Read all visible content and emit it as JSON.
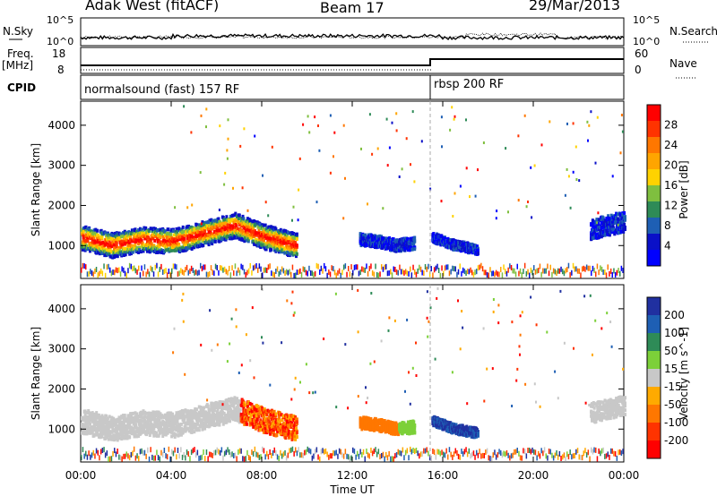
{
  "header": {
    "radar": "Adak West (fitACF)",
    "beam": "Beam 17",
    "date": "29/Mar/2013"
  },
  "top_panel": {
    "left_label_1": "N.Sky",
    "left_label_2": "Freq.",
    "left_label_3": "[MHz]",
    "left_label_4": "CPID",
    "right_label_1": "N.Search",
    "right_label_2": "Nave",
    "noise_ticks": [
      "10^5",
      "10^0"
    ],
    "noise_ticks_right": [
      "10^5",
      "10^0"
    ],
    "freq_ticks": [
      "18",
      "8"
    ],
    "nave_ticks": [
      "60",
      "0"
    ],
    "cpid_segments": [
      {
        "label": "normalsound (fast) 157 RF",
        "start_hour": 0
      },
      {
        "label": "rbsp 200 RF",
        "start_hour": 15.5
      }
    ]
  },
  "power_panel": {
    "ylabel": "Slant Range [km]",
    "colorbar_label": "Power [dB]",
    "colorbar_ticks": [
      "28",
      "24",
      "20",
      "16",
      "12",
      "8",
      "4"
    ],
    "colorbar_colors": [
      "#ff0000",
      "#ff3300",
      "#ff7700",
      "#ffa500",
      "#ffd200",
      "#7fbf3f",
      "#2e8b57",
      "#1e5fb4",
      "#0a10c8",
      "#0000ff"
    ]
  },
  "velocity_panel": {
    "ylabel": "Slant Range [km]",
    "colorbar_label": "Velocity [m s^-1]",
    "colorbar_ticks": [
      "200",
      "100",
      "50",
      "15",
      "-15",
      "-50",
      "-100",
      "-200"
    ],
    "colorbar_colors": [
      "#2030a0",
      "#1e5fb4",
      "#2e8b57",
      "#7cd039",
      "#c8c8c8",
      "#ffaa00",
      "#ff7700",
      "#ff3300",
      "#ff0000"
    ]
  },
  "xaxis": {
    "label": "Time UT",
    "ticks": [
      "00:00",
      "04:00",
      "08:00",
      "12:00",
      "16:00",
      "20:00",
      "00:00"
    ]
  },
  "chart_data": {
    "type": "heatmap",
    "x_range_hours": [
      0,
      24
    ],
    "y_range_km": [
      180,
      4600
    ],
    "yticks": [
      1000,
      2000,
      3000,
      4000
    ],
    "backscatter_bands": [
      {
        "hours": [
          0,
          9.5
        ],
        "center_km": [
          1200,
          1000,
          1150,
          1100,
          1300,
          1500,
          1200,
          1000
        ],
        "width_km": 300
      },
      {
        "hours": [
          12.3,
          14.7
        ],
        "center_km": [
          1150,
          1100,
          1000,
          1050
        ],
        "width_km": 150
      },
      {
        "hours": [
          15.5,
          17.5
        ],
        "center_km": [
          1200,
          1000,
          900
        ],
        "width_km": 120
      },
      {
        "hours": [
          22.5,
          24
        ],
        "center_km": [
          1400,
          1600
        ],
        "width_km": 250
      }
    ],
    "cpid_change_hour": 15.5
  }
}
